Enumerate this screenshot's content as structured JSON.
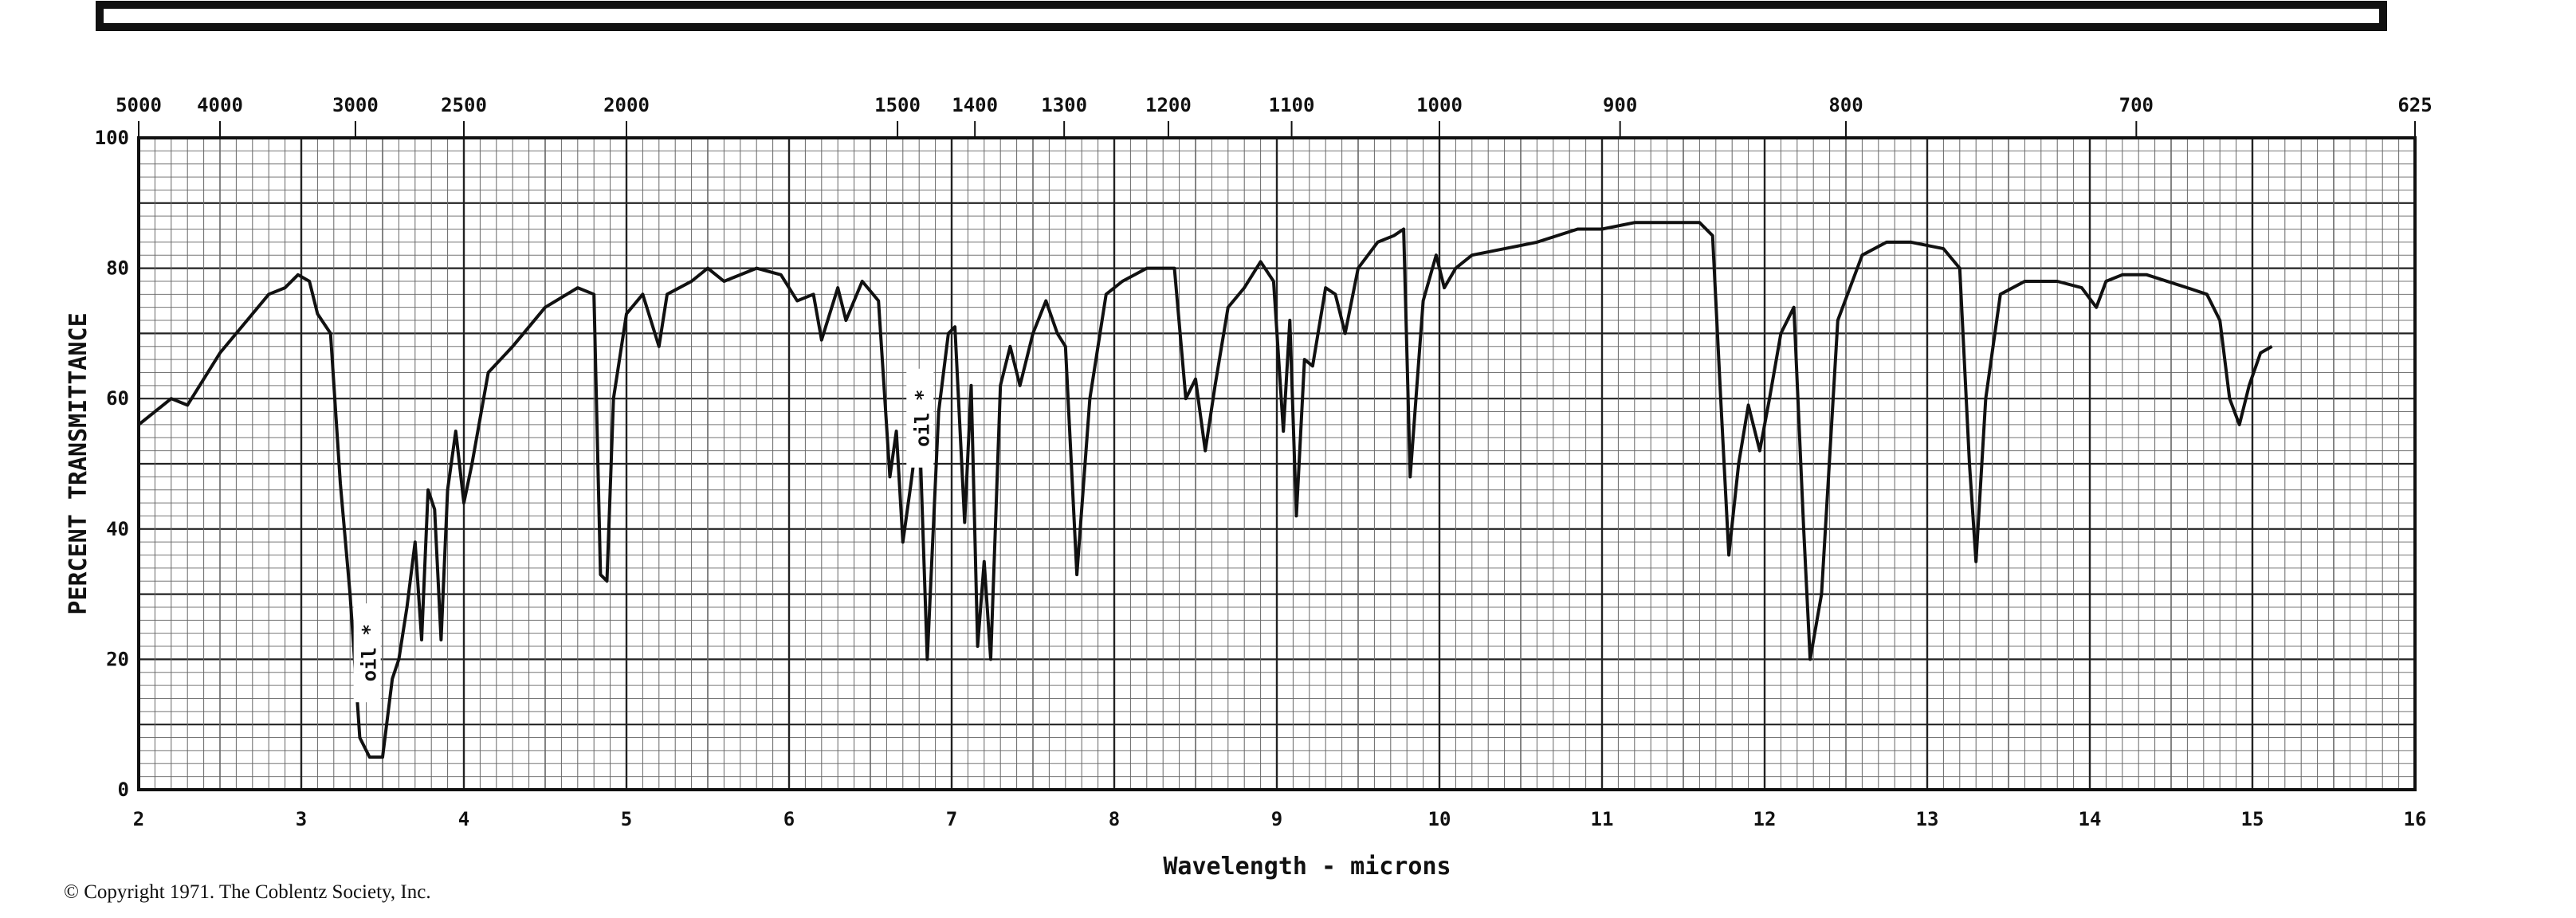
{
  "copyright": "© Copyright 1971. The Coblentz Society, Inc.",
  "colors": {
    "ink": "#111111",
    "grid": "#555555",
    "paper": "#ffffff"
  },
  "chart_data": {
    "type": "line",
    "title": "",
    "xlabel": "Wavelength - microns",
    "ylabel": "PERCENT TRANSMITTANCE",
    "xlim": [
      2,
      16
    ],
    "ylim": [
      0,
      100
    ],
    "x_ticks": [
      "2",
      "3",
      "4",
      "5",
      "6",
      "7",
      "8",
      "9",
      "10",
      "11",
      "12",
      "13",
      "14",
      "15",
      "16"
    ],
    "y_ticks": [
      "0",
      "20",
      "40",
      "60",
      "80",
      "100"
    ],
    "wavenumber_ticks": [
      {
        "label": "5000",
        "micron": 2.0
      },
      {
        "label": "4000",
        "micron": 2.5
      },
      {
        "label": "3000",
        "micron": 3.333
      },
      {
        "label": "2500",
        "micron": 4.0
      },
      {
        "label": "2000",
        "micron": 5.0
      },
      {
        "label": "1500",
        "micron": 6.667
      },
      {
        "label": "1400",
        "micron": 7.143
      },
      {
        "label": "1300",
        "micron": 7.692
      },
      {
        "label": "1200",
        "micron": 8.333
      },
      {
        "label": "1100",
        "micron": 9.091
      },
      {
        "label": "1000",
        "micron": 10.0
      },
      {
        "label": "900",
        "micron": 11.111
      },
      {
        "label": "800",
        "micron": 12.5
      },
      {
        "label": "700",
        "micron": 14.286
      },
      {
        "label": "625",
        "micron": 16.0
      }
    ],
    "annotations": [
      {
        "text": "oil *",
        "x": 3.42,
        "y": 21
      },
      {
        "text": "oil *",
        "x": 6.82,
        "y": 57
      }
    ],
    "series": [
      {
        "points": [
          [
            2.0,
            56
          ],
          [
            2.1,
            58
          ],
          [
            2.2,
            60
          ],
          [
            2.3,
            59
          ],
          [
            2.4,
            63
          ],
          [
            2.5,
            67
          ],
          [
            2.6,
            70
          ],
          [
            2.7,
            73
          ],
          [
            2.8,
            76
          ],
          [
            2.9,
            77
          ],
          [
            2.98,
            79
          ],
          [
            3.05,
            78
          ],
          [
            3.1,
            73
          ],
          [
            3.18,
            70
          ],
          [
            3.24,
            47
          ],
          [
            3.3,
            30
          ],
          [
            3.36,
            8
          ],
          [
            3.42,
            5
          ],
          [
            3.5,
            5
          ],
          [
            3.56,
            17
          ],
          [
            3.6,
            20
          ],
          [
            3.65,
            28
          ],
          [
            3.7,
            38
          ],
          [
            3.74,
            23
          ],
          [
            3.78,
            46
          ],
          [
            3.82,
            43
          ],
          [
            3.86,
            23
          ],
          [
            3.9,
            46
          ],
          [
            3.95,
            55
          ],
          [
            4.0,
            44
          ],
          [
            4.05,
            50
          ],
          [
            4.15,
            64
          ],
          [
            4.3,
            68
          ],
          [
            4.5,
            74
          ],
          [
            4.7,
            77
          ],
          [
            4.8,
            76
          ],
          [
            4.84,
            33
          ],
          [
            4.88,
            32
          ],
          [
            4.92,
            60
          ],
          [
            5.0,
            73
          ],
          [
            5.1,
            76
          ],
          [
            5.15,
            72
          ],
          [
            5.2,
            68
          ],
          [
            5.25,
            76
          ],
          [
            5.4,
            78
          ],
          [
            5.5,
            80
          ],
          [
            5.6,
            78
          ],
          [
            5.8,
            80
          ],
          [
            5.95,
            79
          ],
          [
            6.05,
            75
          ],
          [
            6.15,
            76
          ],
          [
            6.2,
            69
          ],
          [
            6.3,
            77
          ],
          [
            6.35,
            72
          ],
          [
            6.45,
            78
          ],
          [
            6.55,
            75
          ],
          [
            6.62,
            48
          ],
          [
            6.66,
            55
          ],
          [
            6.7,
            38
          ],
          [
            6.75,
            47
          ],
          [
            6.8,
            57
          ],
          [
            6.85,
            20
          ],
          [
            6.92,
            58
          ],
          [
            6.98,
            70
          ],
          [
            7.02,
            71
          ],
          [
            7.08,
            41
          ],
          [
            7.12,
            62
          ],
          [
            7.16,
            22
          ],
          [
            7.2,
            35
          ],
          [
            7.24,
            20
          ],
          [
            7.3,
            62
          ],
          [
            7.36,
            68
          ],
          [
            7.42,
            62
          ],
          [
            7.5,
            70
          ],
          [
            7.58,
            75
          ],
          [
            7.65,
            70
          ],
          [
            7.7,
            68
          ],
          [
            7.77,
            33
          ],
          [
            7.85,
            60
          ],
          [
            7.95,
            76
          ],
          [
            8.05,
            78
          ],
          [
            8.2,
            80
          ],
          [
            8.37,
            80
          ],
          [
            8.44,
            60
          ],
          [
            8.5,
            63
          ],
          [
            8.56,
            52
          ],
          [
            8.62,
            62
          ],
          [
            8.7,
            74
          ],
          [
            8.8,
            77
          ],
          [
            8.9,
            81
          ],
          [
            8.98,
            78
          ],
          [
            9.04,
            55
          ],
          [
            9.08,
            72
          ],
          [
            9.12,
            42
          ],
          [
            9.17,
            66
          ],
          [
            9.22,
            65
          ],
          [
            9.3,
            77
          ],
          [
            9.36,
            76
          ],
          [
            9.42,
            70
          ],
          [
            9.5,
            80
          ],
          [
            9.62,
            84
          ],
          [
            9.72,
            85
          ],
          [
            9.78,
            86
          ],
          [
            9.82,
            48
          ],
          [
            9.9,
            75
          ],
          [
            9.98,
            82
          ],
          [
            10.03,
            77
          ],
          [
            10.1,
            80
          ],
          [
            10.2,
            82
          ],
          [
            10.4,
            83
          ],
          [
            10.6,
            84
          ],
          [
            10.85,
            86
          ],
          [
            11.0,
            86
          ],
          [
            11.2,
            87
          ],
          [
            11.35,
            87
          ],
          [
            11.6,
            87
          ],
          [
            11.68,
            85
          ],
          [
            11.73,
            60
          ],
          [
            11.78,
            36
          ],
          [
            11.84,
            50
          ],
          [
            11.9,
            59
          ],
          [
            11.97,
            52
          ],
          [
            12.03,
            60
          ],
          [
            12.1,
            70
          ],
          [
            12.18,
            74
          ],
          [
            12.24,
            40
          ],
          [
            12.28,
            20
          ],
          [
            12.35,
            30
          ],
          [
            12.45,
            72
          ],
          [
            12.6,
            82
          ],
          [
            12.75,
            84
          ],
          [
            12.9,
            84
          ],
          [
            13.1,
            83
          ],
          [
            13.2,
            80
          ],
          [
            13.26,
            50
          ],
          [
            13.3,
            35
          ],
          [
            13.36,
            60
          ],
          [
            13.45,
            76
          ],
          [
            13.6,
            78
          ],
          [
            13.8,
            78
          ],
          [
            13.95,
            77
          ],
          [
            14.04,
            74
          ],
          [
            14.1,
            78
          ],
          [
            14.2,
            79
          ],
          [
            14.35,
            79
          ],
          [
            14.6,
            77
          ],
          [
            14.72,
            76
          ],
          [
            14.8,
            72
          ],
          [
            14.86,
            60
          ],
          [
            14.92,
            56
          ],
          [
            14.98,
            62
          ],
          [
            15.05,
            67
          ],
          [
            15.12,
            68
          ]
        ]
      }
    ]
  }
}
